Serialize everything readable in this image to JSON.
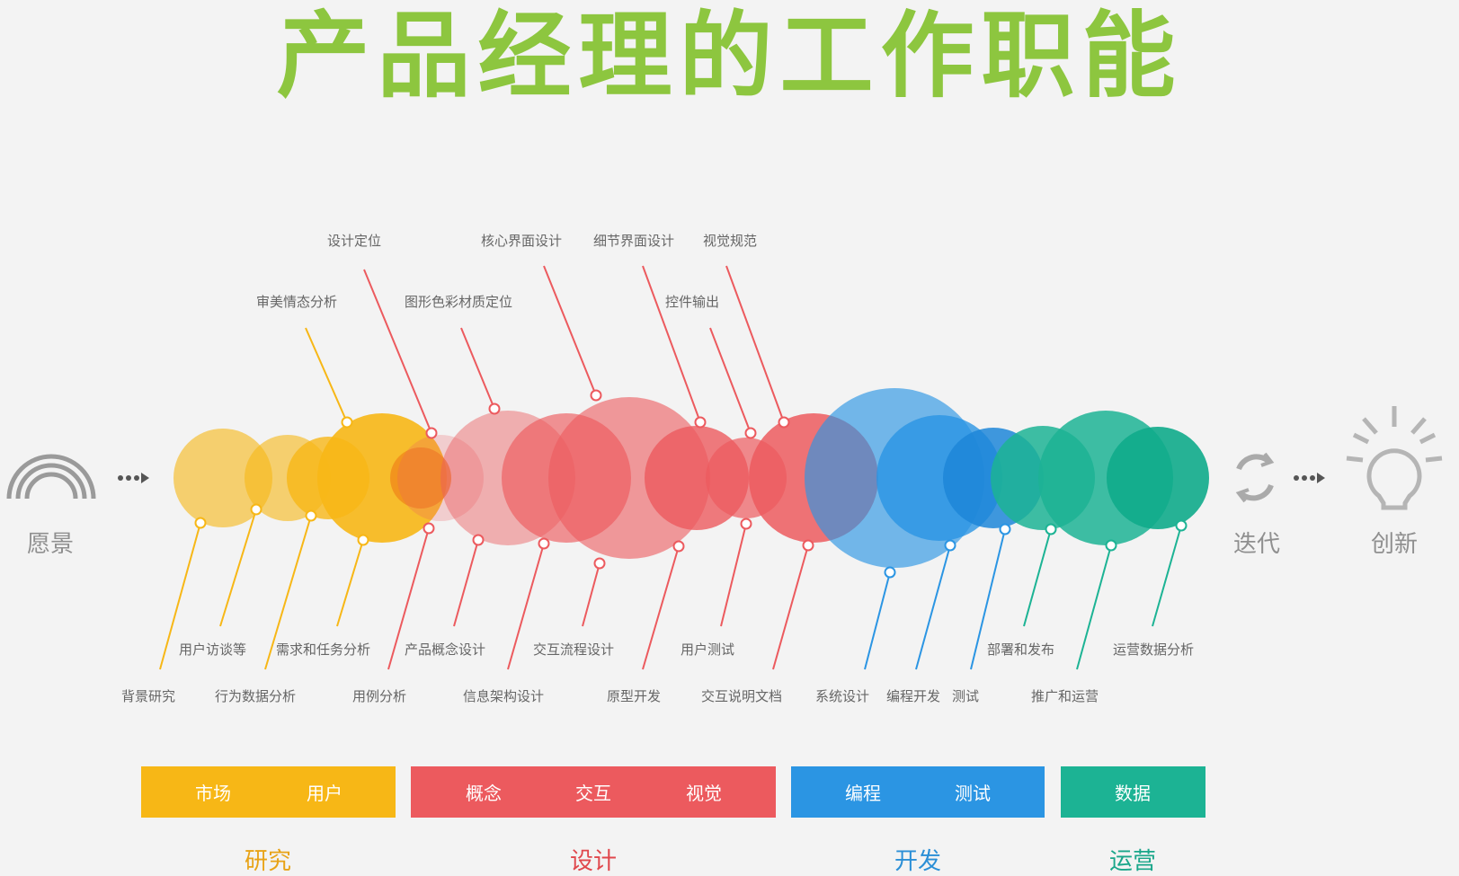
{
  "title": "产品经理的工作职能",
  "flow": {
    "start": "愿景",
    "iterate": "迭代",
    "end": "创新"
  },
  "colors": {
    "yellow": "#f7b716",
    "red": "#ec5a5e",
    "blue": "#2b95e3",
    "green": "#1cb394",
    "title": "#8dc63f"
  },
  "labels": {
    "top": [
      "设计定位",
      "核心界面设计",
      "细节界面设计",
      "视觉规范",
      "审美情态分析",
      "图形色彩材质定位",
      "控件输出"
    ],
    "bottom": [
      "用户访谈等",
      "需求和任务分析",
      "产品概念设计",
      "交互流程设计",
      "用户测试",
      "部署和发布",
      "运营数据分析",
      "背景研究",
      "行为数据分析",
      "用例分析",
      "信息架构设计",
      "原型开发",
      "交互说明文档",
      "系统设计",
      "编程开发",
      "测试",
      "推广和运营"
    ]
  },
  "bars": [
    {
      "items": [
        "市场",
        "用户"
      ],
      "phase": "研究",
      "color": "#f7b716",
      "text": "#e8a317"
    },
    {
      "items": [
        "概念",
        "交互",
        "视觉"
      ],
      "phase": "设计",
      "color": "#ec5a5e",
      "text": "#e0474c"
    },
    {
      "items": [
        "编程",
        "测试"
      ],
      "phase": "开发",
      "color": "#2b95e3",
      "text": "#2b8fd6"
    },
    {
      "items": [
        "数据"
      ],
      "phase": "运营",
      "color": "#1cb394",
      "text": "#1aa68a"
    }
  ]
}
